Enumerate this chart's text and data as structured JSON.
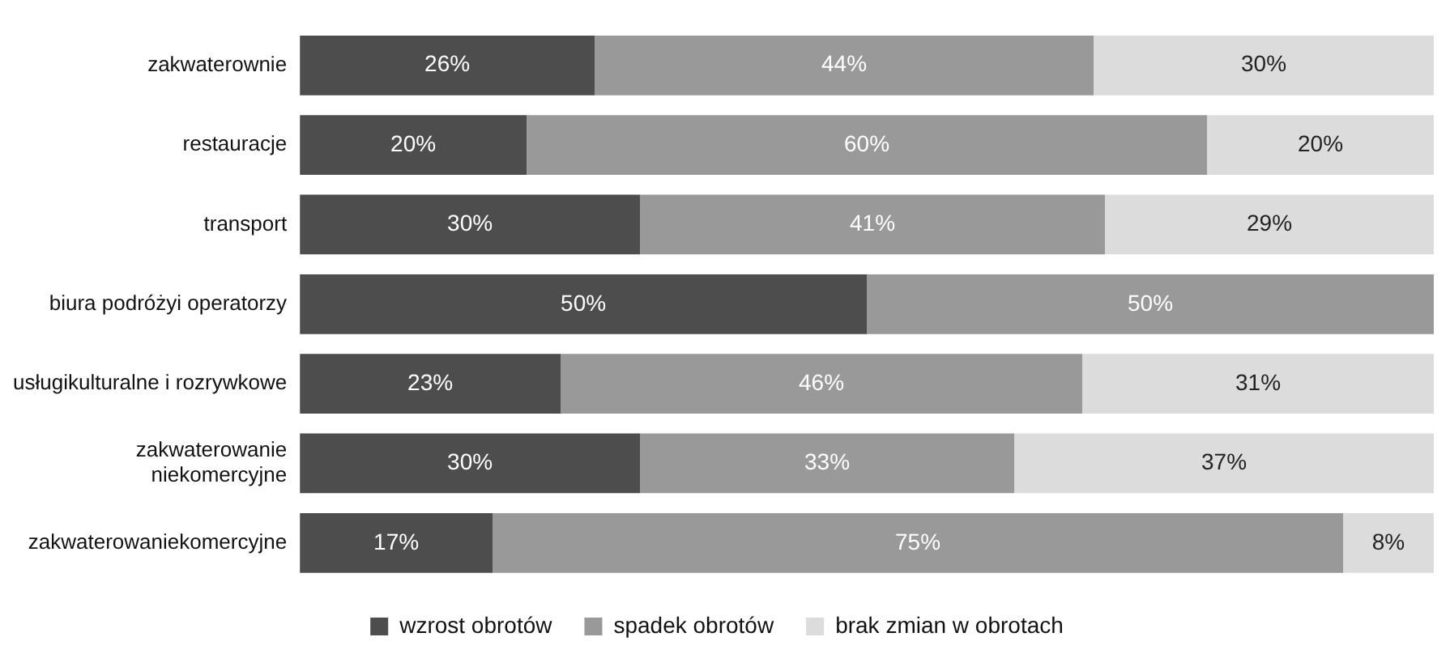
{
  "chart_data": {
    "type": "bar",
    "orientation": "horizontal",
    "stacked": true,
    "categories": [
      "zakwaterownie",
      "restauracje",
      "transport",
      "biura podróżyi operatorzy",
      "usługikulturalne i rozrywkowe",
      "zakwaterowanie\nniekomercyjne",
      "zakwaterowaniekomercyjne"
    ],
    "series": [
      {
        "name": "wzrost obrotów",
        "color": "#4d4d4d",
        "values": [
          26,
          20,
          30,
          50,
          23,
          30,
          17
        ],
        "value_labels": [
          "26%",
          "20%",
          "30%",
          "50%",
          "23%",
          "30%",
          "17%"
        ]
      },
      {
        "name": "spadek obrotów",
        "color": "#999999",
        "values": [
          44,
          60,
          41,
          50,
          46,
          33,
          75
        ],
        "value_labels": [
          "44%",
          "60%",
          "41%",
          "50%",
          "46%",
          "33%",
          "75%"
        ]
      },
      {
        "name": "brak zmian w obrotach",
        "color": "#dcdcdc",
        "values": [
          30,
          20,
          29,
          null,
          31,
          37,
          8
        ],
        "value_labels": [
          "30%",
          "20%",
          "29%",
          null,
          "31%",
          "37%",
          "8%"
        ]
      }
    ],
    "tick_labels": "y",
    "grid": false,
    "legend": "bottom"
  }
}
